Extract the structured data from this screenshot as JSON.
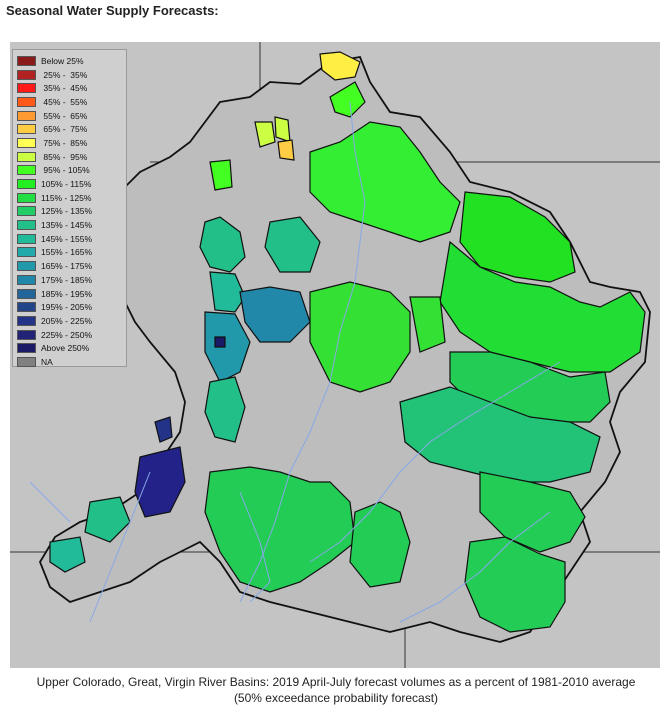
{
  "page": {
    "heading": "Seasonal Water Supply Forecasts:",
    "caption_line1": "Upper Colorado, Great, Virgin River Basins: 2019 April-July forecast volumes as a percent of 1981-2010 average",
    "caption_line2": "(50% exceedance probability forecast)"
  },
  "legend": [
    {
      "label": "Below 25%",
      "color": "#8b1a1a"
    },
    {
      "label": " 25% -  35%",
      "color": "#b22222"
    },
    {
      "label": " 35% -  45%",
      "color": "#ff1a1a"
    },
    {
      "label": " 45% -  55%",
      "color": "#ff5a1a"
    },
    {
      "label": " 55% -  65%",
      "color": "#ff9a33"
    },
    {
      "label": " 65% -  75%",
      "color": "#ffcc44"
    },
    {
      "label": " 75% -  85%",
      "color": "#ffff55"
    },
    {
      "label": " 85% -  95%",
      "color": "#ccff44"
    },
    {
      "label": " 95% - 105%",
      "color": "#44ff22"
    },
    {
      "label": "105% - 115%",
      "color": "#22ee22"
    },
    {
      "label": "115% - 125%",
      "color": "#22dd44"
    },
    {
      "label": "125% - 135%",
      "color": "#22cc66"
    },
    {
      "label": "135% - 145%",
      "color": "#22c088"
    },
    {
      "label": "145% - 155%",
      "color": "#22bb99"
    },
    {
      "label": "155% - 165%",
      "color": "#22aaaa"
    },
    {
      "label": "165% - 175%",
      "color": "#2299aa"
    },
    {
      "label": "175% - 185%",
      "color": "#2288aa"
    },
    {
      "label": "185% - 195%",
      "color": "#226699"
    },
    {
      "label": "195% - 205%",
      "color": "#224488"
    },
    {
      "label": "205% - 225%",
      "color": "#223388"
    },
    {
      "label": "225% - 250%",
      "color": "#222277"
    },
    {
      "label": "Above 250%",
      "color": "#1a1a66"
    },
    {
      "label": "NA",
      "color": "#808080"
    }
  ]
}
